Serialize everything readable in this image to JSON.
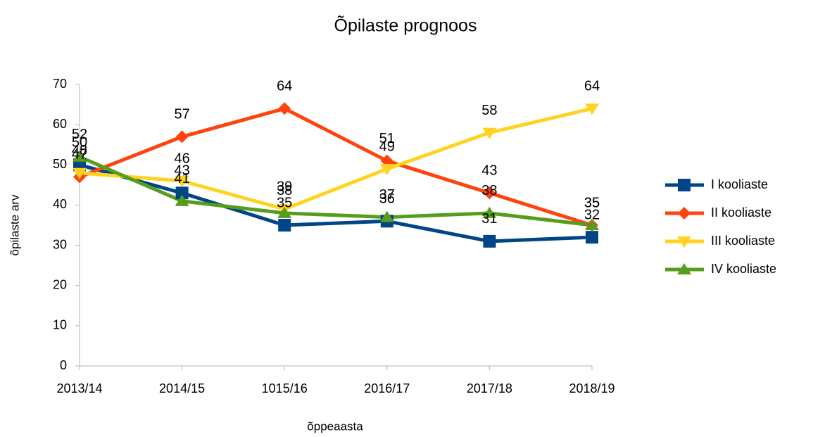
{
  "chart_data": {
    "type": "line",
    "title": "Õpilaste prognoos",
    "xlabel": "õppeaasta",
    "ylabel": "õpilaste arv",
    "categories": [
      "2013/14",
      "2014/15",
      "1015/16",
      "2016/17",
      "2017/18",
      "2018/19"
    ],
    "series": [
      {
        "name": "I kooliaste",
        "color": "#004586",
        "marker": "square",
        "values": [
          50,
          43,
          35,
          36,
          31,
          32
        ]
      },
      {
        "name": "II kooliaste",
        "color": "#ff420e",
        "marker": "diamond",
        "values": [
          47,
          57,
          64,
          51,
          43,
          35
        ]
      },
      {
        "name": "III kooliaste",
        "color": "#ffd320",
        "marker": "triangle-down",
        "values": [
          48,
          46,
          39,
          49,
          58,
          64
        ]
      },
      {
        "name": "IV kooliaste",
        "color": "#579d1c",
        "marker": "triangle-up",
        "values": [
          52,
          41,
          38,
          37,
          38,
          35
        ]
      }
    ],
    "ylim": [
      0,
      70
    ],
    "yticks": [
      0,
      10,
      20,
      30,
      40,
      50,
      60,
      70
    ],
    "grid": false,
    "legend": "right"
  }
}
